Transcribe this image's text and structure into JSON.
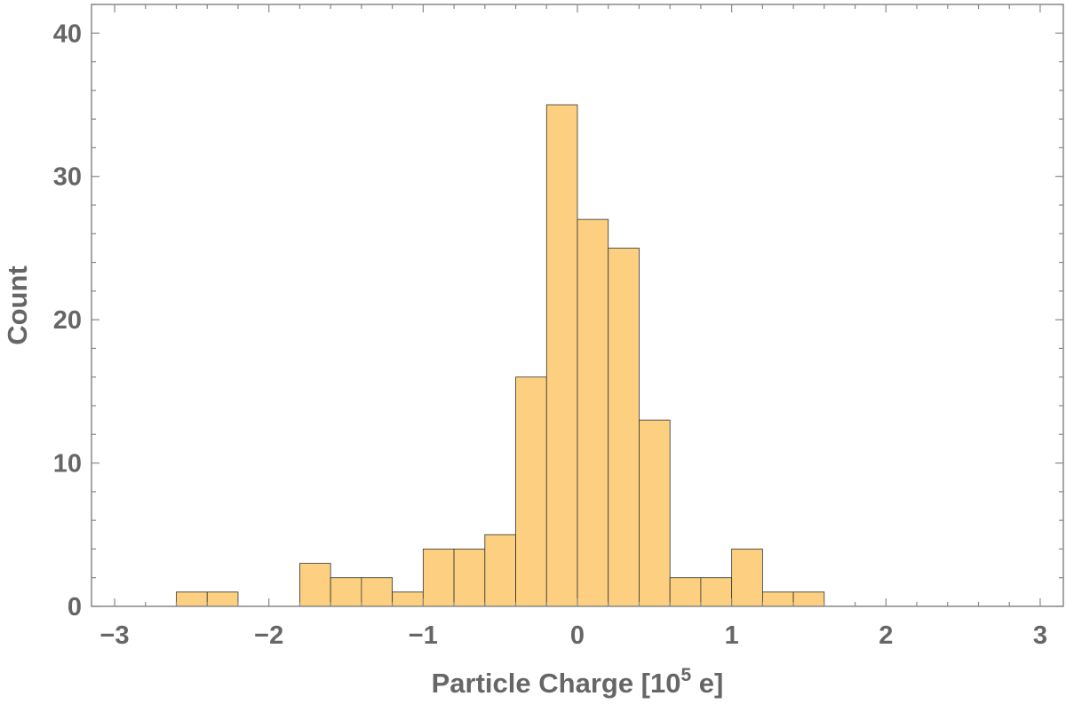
{
  "chart_data": {
    "type": "bar",
    "subtype": "histogram",
    "xlabel_prefix": "Particle Charge [10",
    "xlabel_exponent": "5",
    "xlabel_suffix": " e]",
    "ylabel": "Count",
    "xlim": [
      -3.15,
      3.15
    ],
    "ylim": [
      0,
      42
    ],
    "xticks": [
      -3,
      -2,
      -1,
      0,
      1,
      2,
      3
    ],
    "xtick_labels": [
      "−3",
      "−2",
      "−1",
      "0",
      "1",
      "2",
      "3"
    ],
    "yticks": [
      0,
      10,
      20,
      30,
      40
    ],
    "ytick_labels": [
      "0",
      "10",
      "20",
      "30",
      "40"
    ],
    "bin_width": 0.2,
    "bins": [
      {
        "x0": -2.6,
        "x1": -2.4,
        "count": 1
      },
      {
        "x0": -2.4,
        "x1": -2.2,
        "count": 1
      },
      {
        "x0": -1.8,
        "x1": -1.6,
        "count": 3
      },
      {
        "x0": -1.6,
        "x1": -1.4,
        "count": 2
      },
      {
        "x0": -1.4,
        "x1": -1.2,
        "count": 2
      },
      {
        "x0": -1.2,
        "x1": -1.0,
        "count": 1
      },
      {
        "x0": -1.0,
        "x1": -0.8,
        "count": 4
      },
      {
        "x0": -0.8,
        "x1": -0.6,
        "count": 4
      },
      {
        "x0": -0.6,
        "x1": -0.4,
        "count": 5
      },
      {
        "x0": -0.4,
        "x1": -0.2,
        "count": 16
      },
      {
        "x0": -0.2,
        "x1": 0.0,
        "count": 35
      },
      {
        "x0": 0.0,
        "x1": 0.2,
        "count": 27
      },
      {
        "x0": 0.2,
        "x1": 0.4,
        "count": 25
      },
      {
        "x0": 0.4,
        "x1": 0.6,
        "count": 13
      },
      {
        "x0": 0.6,
        "x1": 0.8,
        "count": 2
      },
      {
        "x0": 0.8,
        "x1": 1.0,
        "count": 2
      },
      {
        "x0": 1.0,
        "x1": 1.2,
        "count": 4
      },
      {
        "x0": 1.2,
        "x1": 1.4,
        "count": 1
      },
      {
        "x0": 1.4,
        "x1": 1.6,
        "count": 1
      }
    ],
    "bar_color": "#fcd080",
    "bar_edge_color": "#333333",
    "grid": false,
    "legend": "none"
  }
}
